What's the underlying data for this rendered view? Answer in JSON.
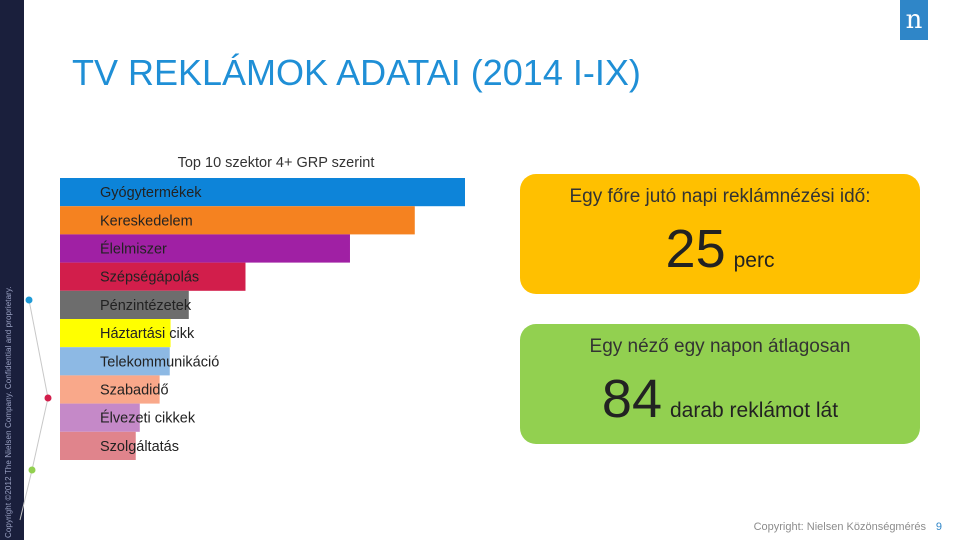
{
  "sidebar": {
    "copyright": "Copyright ©2012 The Nielsen Company. Confidential and proprietary."
  },
  "logo": {
    "letter": "n"
  },
  "page": {
    "title": "TV REKLÁMOK ADATAI (2014 I-IX)"
  },
  "chart_data": {
    "type": "bar",
    "orientation": "horizontal",
    "title": "Top 10 szektor 4+ GRP szerint",
    "categories": [
      "Gyógytermékek",
      "Kereskedelem",
      "Élelmiszer",
      "Szépségápolás",
      "Pénzintézetek",
      "Háztartási cikk",
      "Telekommunikáció",
      "Szabadidő",
      "Élvezeti cikkek",
      "Szolgáltatás"
    ],
    "values": [
      100,
      87.6,
      71.6,
      45.8,
      31.8,
      27.3,
      27.1,
      24.6,
      19.7,
      18.7
    ],
    "colors": [
      "#0d84d9",
      "#f58220",
      "#a020a4",
      "#d21e4b",
      "#6d6d6d",
      "#ffff00",
      "#8db9e4",
      "#f9a88a",
      "#c589c8",
      "#e0848c"
    ],
    "xlim": [
      0,
      100
    ]
  },
  "stats": {
    "box1_label": "Egy főre jutó napi reklámnézési idő:",
    "box1_value": "25",
    "box1_unit": "perc",
    "box2_label": "Egy néző egy napon átlagosan",
    "box2_value": "84",
    "box2_unit": "darab reklámot lát"
  },
  "footer": {
    "copyright": "Copyright: Nielsen Közönségmérés",
    "page_number": "9"
  }
}
